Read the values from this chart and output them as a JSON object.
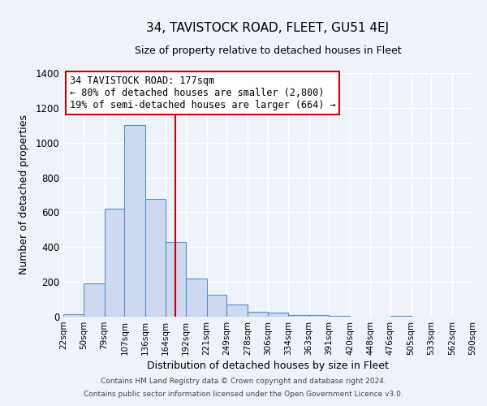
{
  "title": "34, TAVISTOCK ROAD, FLEET, GU51 4EJ",
  "subtitle": "Size of property relative to detached houses in Fleet",
  "xlabel": "Distribution of detached houses by size in Fleet",
  "ylabel": "Number of detached properties",
  "bar_color": "#cdd9ee",
  "bar_edge_color": "#5b8fc9",
  "background_color": "#eef2fb",
  "grid_color": "#ffffff",
  "vline_x": 177,
  "vline_color": "#cc0000",
  "bin_edges": [
    22,
    50,
    79,
    107,
    136,
    164,
    192,
    221,
    249,
    278,
    306,
    334,
    363,
    391,
    420,
    448,
    476,
    505,
    533,
    562,
    590
  ],
  "bar_heights": [
    15,
    190,
    620,
    1100,
    675,
    430,
    220,
    125,
    70,
    30,
    25,
    10,
    10,
    5,
    0,
    0,
    5,
    0,
    0,
    0
  ],
  "ylim": [
    0,
    1400
  ],
  "yticks": [
    0,
    200,
    400,
    600,
    800,
    1000,
    1200,
    1400
  ],
  "tick_labels": [
    "22sqm",
    "50sqm",
    "79sqm",
    "107sqm",
    "136sqm",
    "164sqm",
    "192sqm",
    "221sqm",
    "249sqm",
    "278sqm",
    "306sqm",
    "334sqm",
    "363sqm",
    "391sqm",
    "420sqm",
    "448sqm",
    "476sqm",
    "505sqm",
    "533sqm",
    "562sqm",
    "590sqm"
  ],
  "annotation_title": "34 TAVISTOCK ROAD: 177sqm",
  "annotation_line1": "← 80% of detached houses are smaller (2,800)",
  "annotation_line2": "19% of semi-detached houses are larger (664) →",
  "annotation_box_color": "#ffffff",
  "annotation_edge_color": "#cc0000",
  "footer1": "Contains HM Land Registry data © Crown copyright and database right 2024.",
  "footer2": "Contains public sector information licensed under the Open Government Licence v3.0."
}
